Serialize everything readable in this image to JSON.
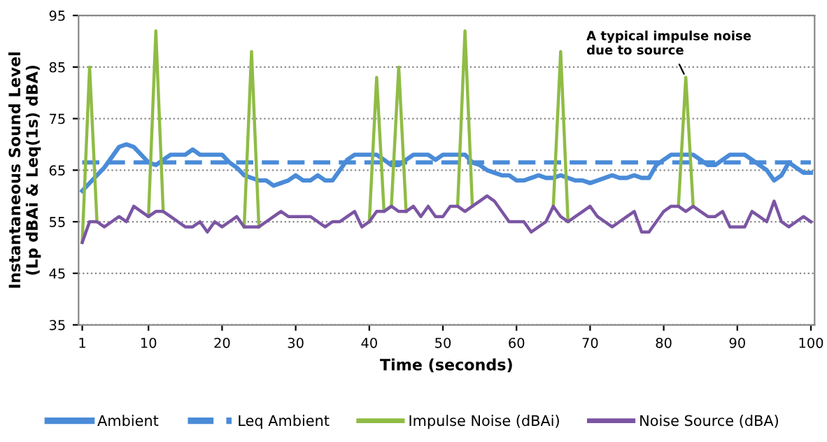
{
  "chart_data": {
    "type": "line",
    "xlabel": "Time (seconds)",
    "ylabel": "Instantaneous Sound Level\n(Lp dBAi & Leq(1s) dBA)",
    "x": [
      1,
      2,
      3,
      4,
      5,
      6,
      7,
      8,
      9,
      10,
      11,
      12,
      13,
      14,
      15,
      16,
      17,
      18,
      19,
      20,
      21,
      22,
      23,
      24,
      25,
      26,
      27,
      28,
      29,
      30,
      31,
      32,
      33,
      34,
      35,
      36,
      37,
      38,
      39,
      40,
      41,
      42,
      43,
      44,
      45,
      46,
      47,
      48,
      49,
      50,
      51,
      52,
      53,
      54,
      55,
      56,
      57,
      58,
      59,
      60,
      61,
      62,
      63,
      64,
      65,
      66,
      67,
      68,
      69,
      70,
      71,
      72,
      73,
      74,
      75,
      76,
      77,
      78,
      79,
      80,
      81,
      82,
      83,
      84,
      85,
      86,
      87,
      88,
      89,
      90,
      91,
      92,
      93,
      94,
      95,
      96,
      97,
      98,
      99,
      100
    ],
    "xlim": [
      0.5,
      100.5
    ],
    "xticks": [
      1,
      10,
      20,
      30,
      40,
      50,
      60,
      70,
      80,
      90,
      100
    ],
    "ylim": [
      35,
      95
    ],
    "yticks": [
      35,
      45,
      55,
      65,
      75,
      85,
      95
    ],
    "grid": "y",
    "legend": "bottom",
    "marker": "none",
    "series": [
      {
        "name": "Ambient",
        "color": "#4a8bd8",
        "line_style": "solid",
        "values": [
          61,
          62.5,
          64,
          65.5,
          67.5,
          69.5,
          70,
          69.5,
          68,
          66.5,
          66,
          67,
          68,
          68,
          68,
          69,
          68,
          68,
          68,
          68,
          66.5,
          65.5,
          64,
          63.5,
          63,
          63,
          62,
          62.5,
          63,
          64,
          63,
          63,
          64,
          63,
          63,
          65,
          67,
          68,
          68,
          68,
          68,
          67,
          66,
          66,
          67,
          68,
          68,
          68,
          67,
          68,
          68,
          68,
          68,
          66.5,
          66,
          65,
          64.5,
          64,
          64,
          63,
          63,
          63.5,
          64,
          63.5,
          63.5,
          64,
          63.5,
          63,
          63,
          62.5,
          63,
          63.5,
          64,
          63.5,
          63.5,
          64,
          63.5,
          63.5,
          66,
          67,
          68,
          68,
          68,
          68,
          67,
          66,
          66,
          67,
          68,
          68,
          68,
          67,
          66,
          65,
          63,
          64,
          66.5,
          65.5,
          64.5,
          64.5
        ]
      },
      {
        "name": "Leq Ambient",
        "color": "#4a8bd8",
        "line_style": "dashed",
        "values": [
          66.5,
          66.5,
          66.5,
          66.5,
          66.5,
          66.5,
          66.5,
          66.5,
          66.5,
          66.5,
          66.5,
          66.5,
          66.5,
          66.5,
          66.5,
          66.5,
          66.5,
          66.5,
          66.5,
          66.5,
          66.5,
          66.5,
          66.5,
          66.5,
          66.5,
          66.5,
          66.5,
          66.5,
          66.5,
          66.5,
          66.5,
          66.5,
          66.5,
          66.5,
          66.5,
          66.5,
          66.5,
          66.5,
          66.5,
          66.5,
          66.5,
          66.5,
          66.5,
          66.5,
          66.5,
          66.5,
          66.5,
          66.5,
          66.5,
          66.5,
          66.5,
          66.5,
          66.5,
          66.5,
          66.5,
          66.5,
          66.5,
          66.5,
          66.5,
          66.5,
          66.5,
          66.5,
          66.5,
          66.5,
          66.5,
          66.5,
          66.5,
          66.5,
          66.5,
          66.5,
          66.5,
          66.5,
          66.5,
          66.5,
          66.5,
          66.5,
          66.5,
          66.5,
          66.5,
          66.5,
          66.5,
          66.5,
          66.5,
          66.5,
          66.5,
          66.5,
          66.5,
          66.5,
          66.5,
          66.5,
          66.5,
          66.5,
          66.5,
          66.5,
          66.5,
          66.5,
          66.5,
          66.5,
          66.5,
          66.5
        ]
      },
      {
        "name": "Impulse Noise (dBAi)",
        "color": "#8fbc45",
        "line_style": "solid",
        "values": [
          51,
          85,
          55,
          null,
          null,
          null,
          null,
          null,
          null,
          56,
          92,
          57,
          null,
          null,
          null,
          null,
          null,
          null,
          null,
          null,
          null,
          null,
          54,
          88,
          54,
          null,
          null,
          null,
          null,
          null,
          null,
          null,
          null,
          null,
          null,
          null,
          null,
          null,
          null,
          55,
          83,
          57,
          58,
          85,
          57,
          null,
          null,
          null,
          null,
          null,
          null,
          58,
          92,
          58,
          null,
          null,
          null,
          null,
          null,
          null,
          null,
          null,
          null,
          null,
          58,
          88,
          55,
          null,
          null,
          null,
          null,
          null,
          null,
          null,
          null,
          null,
          null,
          null,
          null,
          null,
          null,
          58,
          83,
          58,
          null,
          null,
          null,
          null,
          null,
          null,
          null,
          null,
          null,
          null,
          null,
          null,
          null,
          null,
          null,
          null
        ]
      },
      {
        "name": "Noise Source (dBA)",
        "color": "#7b55a3",
        "line_style": "solid",
        "values": [
          51,
          55,
          55,
          54,
          55,
          56,
          55,
          58,
          57,
          56,
          57,
          57,
          56,
          55,
          54,
          54,
          55,
          53,
          55,
          54,
          55,
          56,
          54,
          54,
          54,
          55,
          56,
          57,
          56,
          56,
          56,
          56,
          55,
          54,
          55,
          55,
          56,
          57,
          54,
          55,
          57,
          57,
          58,
          57,
          57,
          58,
          56,
          58,
          56,
          56,
          58,
          58,
          57,
          58,
          59,
          60,
          59,
          57,
          55,
          55,
          55,
          53,
          54,
          55,
          58,
          56,
          55,
          56,
          57,
          58,
          56,
          55,
          54,
          55,
          56,
          57,
          53,
          53,
          55,
          57,
          58,
          58,
          57,
          58,
          57,
          56,
          56,
          57,
          54,
          54,
          54,
          57,
          56,
          55,
          59,
          55,
          54,
          55,
          56,
          55
        ]
      }
    ],
    "annotations": [
      {
        "text": "A typical impulse noise\ndue to source",
        "x": 83,
        "y": 83
      }
    ]
  }
}
